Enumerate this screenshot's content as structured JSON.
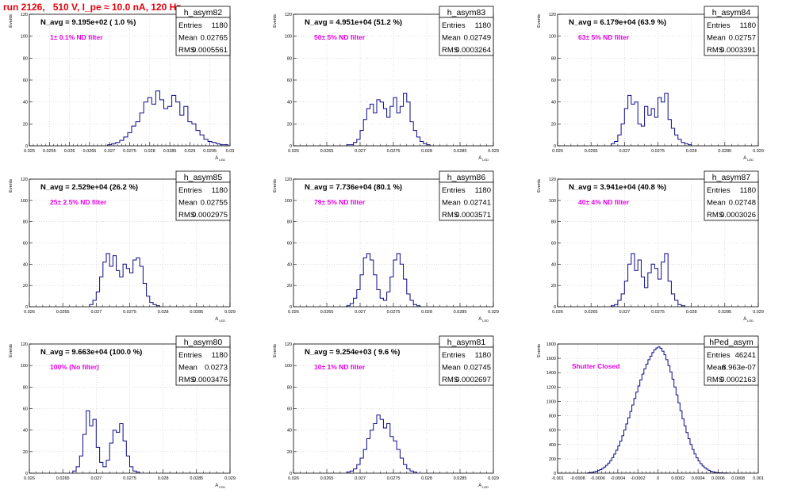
{
  "header": {
    "title": "run 2126,   510 V, I_pe ≈ 10.0 nA, 120 Hz"
  },
  "chart_data": [
    {
      "type": "bar",
      "hist_name": "h_asym82",
      "ylabel": "Events",
      "xlabel": "A_LED",
      "xlim": [
        0.025,
        0.03
      ],
      "ylim": [
        0,
        120
      ],
      "xticks": [
        0.025,
        0.0255,
        0.026,
        0.0265,
        0.027,
        0.0275,
        0.028,
        0.0285,
        0.029,
        0.0295,
        0.03
      ],
      "xtick_labels": [
        "0.025",
        "0.0255",
        "0.026",
        "0.0265",
        "0.027",
        "0.0275",
        "0.028",
        "0.0285",
        "0.029",
        "0.0295",
        "0.03"
      ],
      "yticks": [
        0,
        20,
        40,
        60,
        80,
        100,
        120
      ],
      "stats": [
        [
          "Entries",
          "1180"
        ],
        [
          "Mean",
          "0.02765"
        ],
        [
          "RMS",
          "0.0005561"
        ]
      ],
      "annotation_main": "N_avg = 9.195e+02 ( 1.0 %)",
      "annotation_sub": "1± 0.1% ND filter",
      "bins": {
        "start": 0.02695,
        "width": 0.0001,
        "values": [
          1,
          2,
          3,
          5,
          8,
          12,
          18,
          22,
          30,
          40,
          44,
          38,
          50,
          42,
          34,
          36,
          46,
          40,
          28,
          36,
          22,
          20,
          14,
          10,
          6,
          4,
          3,
          2,
          1,
          1
        ]
      }
    },
    {
      "type": "bar",
      "hist_name": "h_asym83",
      "ylabel": "Events",
      "xlabel": "A_LED",
      "xlim": [
        0.026,
        0.029
      ],
      "ylim": [
        0,
        120
      ],
      "xticks": [
        0.026,
        0.0265,
        0.027,
        0.0275,
        0.028,
        0.0285,
        0.029
      ],
      "xtick_labels": [
        "0.026",
        "0.0265",
        "0.027",
        "0.0275",
        "0.028",
        "0.0285",
        "0.029"
      ],
      "yticks": [
        0,
        20,
        40,
        60,
        80,
        100,
        120
      ],
      "stats": [
        [
          "Entries",
          "1180"
        ],
        [
          "Mean",
          "0.02749"
        ],
        [
          "RMS",
          "0.0003264"
        ]
      ],
      "annotation_main": "N_avg = 4.951e+04 (51.2 %)",
      "annotation_sub": "50± 5% ND filter",
      "bins": {
        "start": 0.0268,
        "width": 5e-05,
        "values": [
          1,
          1,
          3,
          6,
          14,
          24,
          34,
          38,
          30,
          42,
          40,
          34,
          26,
          36,
          44,
          30,
          36,
          48,
          40,
          22,
          14,
          8,
          4,
          2,
          1
        ]
      }
    },
    {
      "type": "bar",
      "hist_name": "h_asym84",
      "ylabel": "Events",
      "xlabel": "A_LED",
      "xlim": [
        0.026,
        0.029
      ],
      "ylim": [
        0,
        120
      ],
      "xticks": [
        0.026,
        0.0265,
        0.027,
        0.0275,
        0.028,
        0.0285,
        0.029
      ],
      "xtick_labels": [
        "0.026",
        "0.0265",
        "0.027",
        "0.0275",
        "0.028",
        "0.0285",
        "0.029"
      ],
      "yticks": [
        0,
        20,
        40,
        60,
        80,
        100,
        120
      ],
      "stats": [
        [
          "Entries",
          "1180"
        ],
        [
          "Mean",
          "0.02757"
        ],
        [
          "RMS",
          "0.0003391"
        ]
      ],
      "annotation_main": "N_avg = 6.179e+04 (63.9 %)",
      "annotation_sub": "63± 5% ND filter",
      "bins": {
        "start": 0.0268,
        "width": 5e-05,
        "values": [
          2,
          4,
          10,
          20,
          34,
          46,
          38,
          40,
          20,
          18,
          36,
          28,
          34,
          26,
          44,
          40,
          48,
          24,
          16,
          10,
          6,
          3,
          2,
          1
        ]
      }
    },
    {
      "type": "bar",
      "hist_name": "h_asym85",
      "ylabel": "Events",
      "xlabel": "A_LED",
      "xlim": [
        0.026,
        0.029
      ],
      "ylim": [
        0,
        120
      ],
      "xticks": [
        0.026,
        0.0265,
        0.027,
        0.0275,
        0.028,
        0.0285,
        0.029
      ],
      "xtick_labels": [
        "0.026",
        "0.0265",
        "0.027",
        "0.0275",
        "0.028",
        "0.0285",
        "0.029"
      ],
      "yticks": [
        0,
        20,
        40,
        60,
        80,
        100,
        120
      ],
      "stats": [
        [
          "Entries",
          "1180"
        ],
        [
          "Mean",
          "0.02755"
        ],
        [
          "RMS",
          "0.0002975"
        ]
      ],
      "annotation_main": "N_avg = 2.529e+04 (26.2 %)",
      "annotation_sub": "25± 2.5% ND filter",
      "bins": {
        "start": 0.0269,
        "width": 5e-05,
        "values": [
          2,
          6,
          14,
          28,
          42,
          50,
          38,
          48,
          34,
          28,
          40,
          36,
          32,
          44,
          46,
          38,
          22,
          10,
          4,
          2,
          1
        ]
      }
    },
    {
      "type": "bar",
      "hist_name": "h_asym86",
      "ylabel": "Events",
      "xlabel": "A_LED",
      "xlim": [
        0.026,
        0.029
      ],
      "ylim": [
        0,
        120
      ],
      "xticks": [
        0.026,
        0.0265,
        0.027,
        0.0275,
        0.028,
        0.0285,
        0.029
      ],
      "xtick_labels": [
        "0.026",
        "0.0265",
        "0.027",
        "0.0275",
        "0.028",
        "0.0285",
        "0.029"
      ],
      "yticks": [
        0,
        20,
        40,
        60,
        80,
        100,
        120
      ],
      "stats": [
        [
          "Entries",
          "1180"
        ],
        [
          "Mean",
          "0.02741"
        ],
        [
          "RMS",
          "0.0003571"
        ]
      ],
      "annotation_main": "N_avg = 7.736e+04 (80.1 %)",
      "annotation_sub": "79± 5% ND filter",
      "bins": {
        "start": 0.0268,
        "width": 5e-05,
        "values": [
          1,
          3,
          8,
          16,
          30,
          46,
          50,
          44,
          30,
          16,
          8,
          6,
          14,
          28,
          44,
          50,
          40,
          26,
          12,
          6,
          2,
          1
        ]
      }
    },
    {
      "type": "bar",
      "hist_name": "h_asym87",
      "ylabel": "Events",
      "xlabel": "A_LED",
      "xlim": [
        0.026,
        0.029
      ],
      "ylim": [
        0,
        120
      ],
      "xticks": [
        0.026,
        0.0265,
        0.027,
        0.0275,
        0.028,
        0.0285,
        0.029
      ],
      "xtick_labels": [
        "0.026",
        "0.0265",
        "0.027",
        "0.0275",
        "0.028",
        "0.0285",
        "0.029"
      ],
      "yticks": [
        0,
        20,
        40,
        60,
        80,
        100,
        120
      ],
      "stats": [
        [
          "Entries",
          "1180"
        ],
        [
          "Mean",
          "0.02748"
        ],
        [
          "RMS",
          "0.0003026"
        ]
      ],
      "annotation_main": "N_avg = 3.941e+04 (40.8 %)",
      "annotation_sub": "40± 4% ND filter",
      "bins": {
        "start": 0.0268,
        "width": 5e-05,
        "values": [
          1,
          2,
          6,
          12,
          24,
          40,
          50,
          34,
          44,
          28,
          18,
          32,
          40,
          36,
          26,
          42,
          50,
          24,
          12,
          6,
          2,
          1
        ]
      }
    },
    {
      "type": "bar",
      "hist_name": "h_asym80",
      "ylabel": "Events",
      "xlabel": "A_LED",
      "xlim": [
        0.026,
        0.029
      ],
      "ylim": [
        0,
        120
      ],
      "xticks": [
        0.026,
        0.0265,
        0.027,
        0.0275,
        0.028,
        0.0285,
        0.029
      ],
      "xtick_labels": [
        "0.026",
        "0.0265",
        "0.027",
        "0.0275",
        "0.028",
        "0.0285",
        "0.029"
      ],
      "yticks": [
        0,
        20,
        40,
        60,
        80,
        100,
        120
      ],
      "stats": [
        [
          "Entries",
          "1180"
        ],
        [
          "Mean",
          "0.0273"
        ],
        [
          "RMS",
          "0.0003476"
        ]
      ],
      "annotation_main": "N_avg = 9.663e+04 (100.0 %)",
      "annotation_sub": "100% (No filter)",
      "bins": {
        "start": 0.02665,
        "width": 5e-05,
        "values": [
          2,
          6,
          16,
          36,
          58,
          44,
          50,
          24,
          10,
          6,
          12,
          28,
          40,
          38,
          46,
          30,
          16,
          6,
          2,
          1
        ]
      }
    },
    {
      "type": "bar",
      "hist_name": "h_asym81",
      "ylabel": "Events",
      "xlabel": "A_LED",
      "xlim": [
        0.026,
        0.029
      ],
      "ylim": [
        0,
        120
      ],
      "xticks": [
        0.026,
        0.0265,
        0.027,
        0.0275,
        0.028,
        0.0285,
        0.029
      ],
      "xtick_labels": [
        "0.026",
        "0.0265",
        "0.027",
        "0.0275",
        "0.028",
        "0.0285",
        "0.029"
      ],
      "yticks": [
        0,
        20,
        40,
        60,
        80,
        100,
        120
      ],
      "stats": [
        [
          "Entries",
          "1180"
        ],
        [
          "Mean",
          "0.02745"
        ],
        [
          "RMS",
          "0.0002697"
        ]
      ],
      "annotation_main": "N_avg = 9.254e+03 ( 9.6 %)",
      "annotation_sub": "10± 1% ND filter",
      "bins": {
        "start": 0.0268,
        "width": 5e-05,
        "values": [
          1,
          2,
          4,
          8,
          14,
          22,
          32,
          40,
          46,
          54,
          50,
          42,
          46,
          34,
          30,
          22,
          14,
          8,
          4,
          2,
          1
        ]
      }
    },
    {
      "type": "bar",
      "hist_name": "hPed_asym",
      "ylabel": "Events",
      "xlabel": "",
      "xlim": [
        -0.001,
        0.001
      ],
      "ylim": [
        0,
        1800
      ],
      "xticks": [
        -0.001,
        -0.0008,
        -0.0006,
        -0.0004,
        -0.0002,
        0,
        0.0002,
        0.0004,
        0.0006,
        0.0008,
        0.001
      ],
      "xtick_labels": [
        "-0.001",
        "-0.0008",
        "-0.0006",
        "-0.0004",
        "-0.0002",
        "0",
        "0.0002",
        "0.0004",
        "0.0006",
        "0.0008",
        "0.001"
      ],
      "yticks": [
        0,
        200,
        400,
        600,
        800,
        1000,
        1200,
        1400,
        1600,
        1800
      ],
      "stats": [
        [
          "Entries",
          "46241"
        ],
        [
          "Mean",
          "8.963e-07"
        ],
        [
          "RMS",
          "0.0002163"
        ]
      ],
      "annotation_main": "",
      "annotation_sub": "Shutter Closed",
      "bins": {
        "start": -0.0007,
        "width": 2e-05,
        "values": [
          5,
          8,
          12,
          18,
          26,
          36,
          50,
          66,
          86,
          110,
          140,
          176,
          218,
          266,
          320,
          380,
          448,
          522,
          602,
          686,
          772,
          860,
          950,
          1040,
          1130,
          1215,
          1300,
          1380,
          1455,
          1520,
          1580,
          1630,
          1680,
          1720,
          1745,
          1760,
          1740,
          1700,
          1650,
          1580,
          1500,
          1410,
          1310,
          1200,
          1090,
          980,
          870,
          760,
          660,
          566,
          480,
          400,
          330,
          268,
          214,
          170,
          132,
          100,
          76,
          56,
          40,
          28,
          18,
          12,
          8,
          5,
          3,
          2,
          1,
          1
        ]
      }
    }
  ]
}
